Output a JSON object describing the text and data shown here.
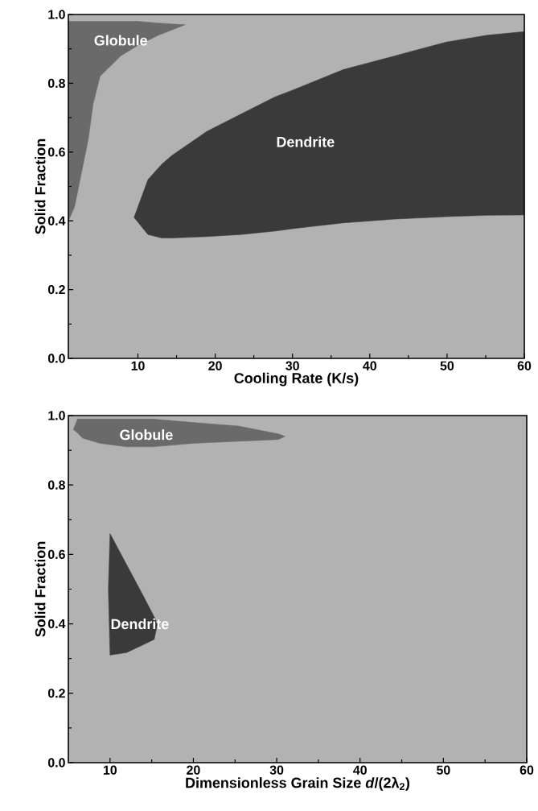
{
  "chart_data": [
    {
      "type": "line",
      "xlabel": "Cooling Rate (K/s)",
      "ylabel": "Solid Fraction",
      "xlim": [
        1,
        60
      ],
      "ylim": [
        0,
        1
      ],
      "xticks": [
        10,
        20,
        30,
        40,
        50,
        60
      ],
      "yticks": [
        {
          "value": 0,
          "label": "0.0"
        },
        {
          "value": 0.2,
          "label": "0.2"
        },
        {
          "value": 0.4,
          "label": "0.4"
        },
        {
          "value": 0.6,
          "label": "0.6"
        },
        {
          "value": 0.8,
          "label": "0.8"
        },
        {
          "value": 1,
          "label": "1.0"
        }
      ],
      "series": [
        {
          "color": "#6a6a6a",
          "x": [
            1,
            1.8,
            2.7,
            3.6,
            4.2,
            5.1,
            7.8,
            10,
            12.7,
            16.1
          ],
          "values": [
            null,
            null,
            null,
            null,
            null,
            null,
            null,
            null,
            null,
            null
          ],
          "upper": [
            0.98,
            0.98,
            0.98,
            0.98,
            0.98,
            0.98,
            0.98,
            0.98,
            0.975,
            0.97
          ],
          "lower": [
            0.4,
            0.44,
            0.54,
            0.64,
            0.74,
            0.82,
            0.88,
            0.91,
            0.94,
            0.97
          ]
        },
        {
          "color": "#3a3a3a",
          "x": [
            9.5,
            11.3,
            13.1,
            14.4,
            18.9,
            23.3,
            27.7,
            30,
            36.6,
            43.3,
            49.9,
            55.3,
            60
          ],
          "values": [
            null,
            null,
            null,
            null,
            null,
            null,
            null,
            null,
            null,
            null,
            null,
            null,
            null
          ],
          "upper": [
            0.41,
            0.52,
            0.565,
            0.59,
            0.66,
            0.71,
            0.76,
            0.78,
            0.84,
            0.88,
            0.92,
            0.94,
            0.95
          ],
          "lower": [
            0.41,
            0.36,
            0.35,
            0.35,
            0.354,
            0.36,
            0.37,
            0.377,
            0.394,
            0.405,
            0.412,
            0.416,
            0.417
          ]
        }
      ],
      "annotations": [
        "Globule",
        "Dendrite"
      ]
    },
    {
      "type": "line",
      "xlabel": "Dimensionless Grain Size *d*/(2λ$_{2}$)",
      "ylabel": "Solid Fraction",
      "xlim": [
        5,
        60
      ],
      "ylim": [
        0,
        1
      ],
      "xticks": [
        10,
        20,
        30,
        40,
        50,
        60
      ],
      "yticks": [
        {
          "value": 0,
          "label": "0.0"
        },
        {
          "value": 0.2,
          "label": "0.2"
        },
        {
          "value": 0.4,
          "label": "0.4"
        },
        {
          "value": 0.6,
          "label": "0.6"
        },
        {
          "value": 0.8,
          "label": "0.8"
        },
        {
          "value": 1,
          "label": "1.0"
        }
      ],
      "series": [
        {
          "color": "#6a6a6a",
          "x": [
            5.6,
            6.1,
            6.7,
            8.8,
            12,
            15.1,
            20,
            25.4,
            30.2,
            31
          ],
          "values": [
            null,
            null,
            null,
            null,
            null,
            null,
            null,
            null,
            null,
            null
          ],
          "upper": [
            0.96,
            0.99,
            0.99,
            0.99,
            0.99,
            0.99,
            0.98,
            0.97,
            0.947,
            0.94
          ],
          "lower": [
            0.96,
            0.95,
            0.935,
            0.92,
            0.91,
            0.91,
            0.92,
            0.926,
            0.931,
            0.94
          ]
        },
        {
          "color": "#3a3a3a",
          "x": [
            9.8,
            10,
            12,
            14,
            15.3,
            15.7
          ],
          "values": [
            null,
            null,
            null,
            null,
            null,
            null
          ],
          "upper": [
            0.5,
            0.66,
            0.57,
            0.48,
            0.42,
            0.4
          ],
          "lower": [
            0.5,
            0.31,
            0.317,
            0.34,
            0.355,
            0.4
          ]
        }
      ],
      "annotations": [
        "Globule",
        {
          "text": "Dendrite",
          "x": 15.7,
          "y": 0.4
        }
      ]
    }
  ]
}
